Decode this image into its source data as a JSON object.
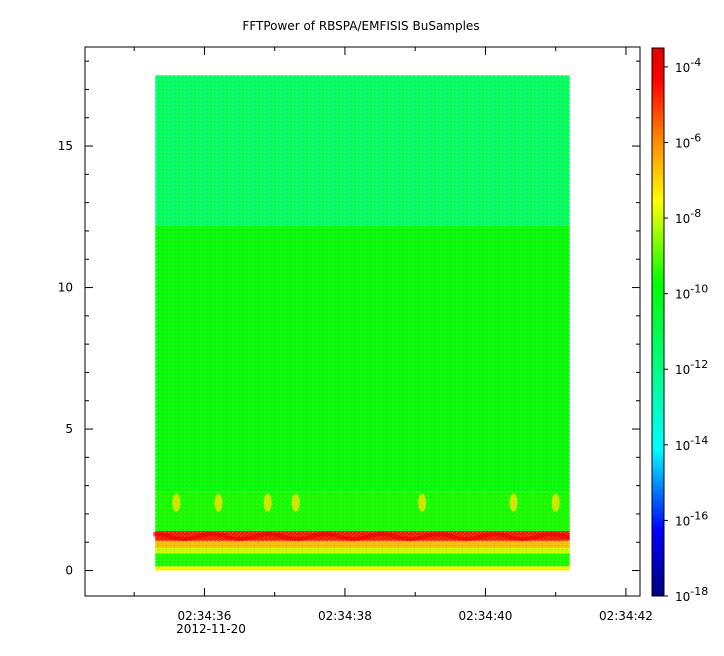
{
  "chart_data": {
    "type": "heatmap",
    "title": "FFTPower of RBSPA/EMFISIS  BuSamples",
    "xlabel": "",
    "ylabel": "",
    "x_ticks": [
      "02:34:36",
      "02:34:38",
      "02:34:40",
      "02:34:42"
    ],
    "x_tick_values": [
      36,
      38,
      40,
      42
    ],
    "x_date_label": "2012-11-20",
    "xlim": [
      34.3,
      42.2
    ],
    "data_x_range": [
      35.3,
      41.2
    ],
    "y_ticks": [
      0,
      5,
      10,
      15
    ],
    "ylim": [
      -0.9,
      18.5
    ],
    "data_y_range": [
      0,
      17.5
    ],
    "colorbar": {
      "scale": "log",
      "range_exponents": [
        -18,
        -3.5
      ],
      "tick_exponents": [
        -4,
        -6,
        -8,
        -10,
        -12,
        -14,
        -16,
        -18
      ],
      "tick_labels": [
        "10",
        "10",
        "10",
        "10",
        "10",
        "10",
        "10",
        "10"
      ],
      "tick_superscripts": [
        "-4",
        "-6",
        "-8",
        "-10",
        "-12",
        "-14",
        "-16",
        "-18"
      ],
      "colormap": [
        "#00007f",
        "#0000ff",
        "#00ffff",
        "#00ff80",
        "#00ff00",
        "#ffff00",
        "#ff8000",
        "#ff0000",
        "#e00000"
      ]
    },
    "bands": [
      {
        "y_from": 0.0,
        "y_to": 0.15,
        "log_power": -8.8
      },
      {
        "y_from": 0.15,
        "y_to": 0.6,
        "log_power": -10.6
      },
      {
        "y_from": 0.6,
        "y_to": 0.8,
        "log_power": -9.3
      },
      {
        "y_from": 0.8,
        "y_to": 1.05,
        "log_power": -8.0
      },
      {
        "y_from": 1.05,
        "y_to": 1.4,
        "log_power": -5.6
      },
      {
        "y_from": 1.4,
        "y_to": 2.8,
        "log_power": -10.6
      },
      {
        "y_from": 2.8,
        "y_to": 12.2,
        "log_power": -10.9
      },
      {
        "y_from": 12.2,
        "y_to": 17.5,
        "log_power": -12.3
      }
    ],
    "bursts_x": [
      35.6,
      36.2,
      36.9,
      37.3,
      39.1,
      40.4,
      41.0
    ]
  }
}
